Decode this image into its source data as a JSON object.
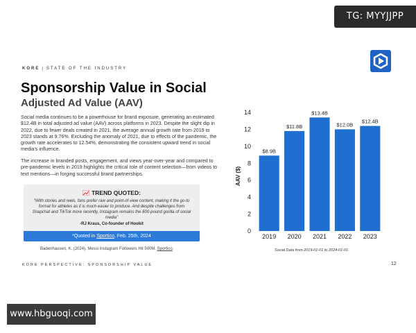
{
  "watermarks": {
    "top": "TG: MYYJJPP",
    "bottom": "www.hbguoqi.com"
  },
  "logo": {
    "icon": "kore-logo-icon"
  },
  "kicker": {
    "brand": "KORE",
    "separator": "|",
    "section": "STATE OF THE INDUSTRY"
  },
  "heading": {
    "title": "Sponsorship Value in Social",
    "subtitle": "Adjusted Ad Value (AAV)"
  },
  "body": {
    "paragraph1": "Social media continues to be a powerhouse for brand exposure, generating an estimated $12.4B in total adjusted ad value (AAV) across platforms in 2023. Despite the slight dip in 2022, due to fewer deals created in 2021, the average annual growth rate from 2019 to 2023 stands at 9.76%. Excluding the anomaly of 2021, due to effects of the pandemic, the growth rate accelerates to 12.54%, demonstrating the consistent upward trend in social media's influence.",
    "paragraph2": "The increase in branded posts, engagement, and views year-over-year and compared to pre-pandemic levels in 2019 highlights the critical role of content selection—from videos to text mentions—in forging successful brand partnerships."
  },
  "quote": {
    "icon": "trend-chart-icon",
    "heading": "TREND QUOTED:",
    "text": "\"With stories and reels, fans prefer raw and point-of-view content, making it the go-to format for athletes as it is much easier to produce. And despite challenges from Snapchat and TikTok more recently, Instagram remains the 800-pound gorilla of social media\"",
    "author": "-RJ Kraus, Co-founder of Hookit",
    "source_prefix": "*Quoted in ",
    "source_link": "Sportico",
    "source_suffix": ", Feb. 25th, 2024"
  },
  "citation": {
    "text": "Badenhausen, K. (2024). Messi Instagram Followers Hit 500M. ",
    "link": "Sportico",
    "end": "."
  },
  "footer": {
    "text": "KORE PERSPECTIVE: SPONSORSHIP VALUE",
    "page": "12"
  },
  "chart_data": {
    "type": "bar",
    "title": "",
    "xlabel": "",
    "ylabel": "AAV ($)",
    "categories": [
      "2019",
      "2020",
      "2021",
      "2022",
      "2023"
    ],
    "values": [
      8.9,
      11.8,
      13.4,
      12.0,
      12.4
    ],
    "data_labels": [
      "$8.9B",
      "$11.8B",
      "$13.4B",
      "$12.0B",
      "$12.4B"
    ],
    "ylim": [
      0,
      14
    ],
    "yticks": [
      0,
      2,
      4,
      6,
      8,
      10,
      12,
      14
    ],
    "grid": false,
    "legend": "none",
    "bar_color": "#1f6fd1",
    "note": "Social Data from 2019-01-01 to 2024-01-01"
  }
}
